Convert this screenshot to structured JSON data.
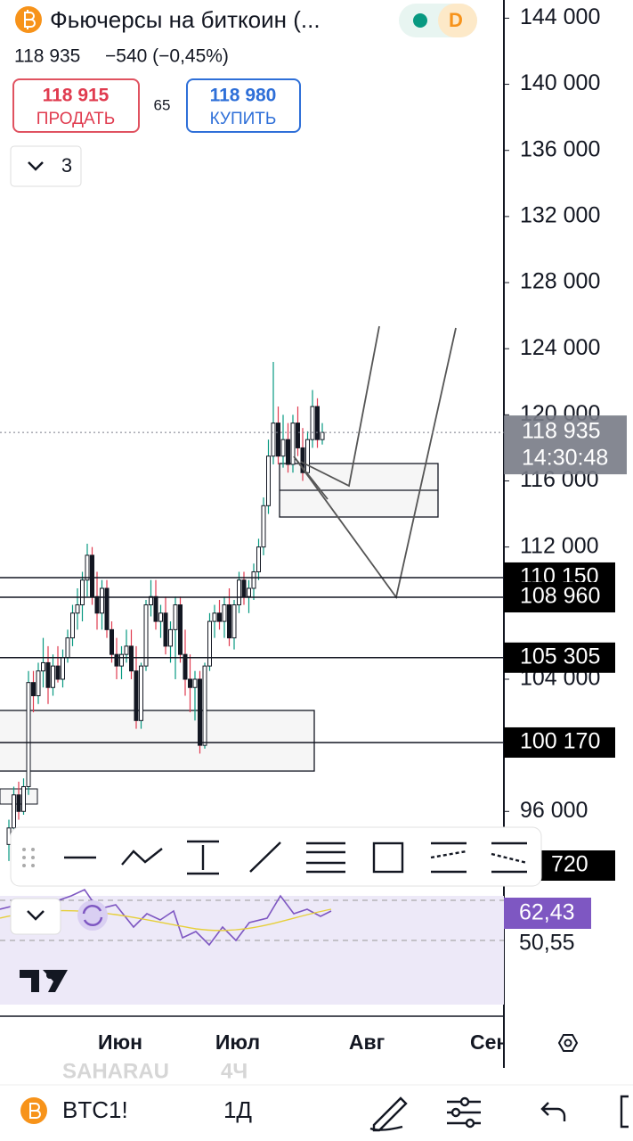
{
  "header": {
    "title": "Фьючерсы на биткоин (...",
    "price": "118 935",
    "change": "−540 (−0,45%)",
    "sell_price": "118 915",
    "sell_label": "ПРОДАТЬ",
    "spread": "65",
    "buy_price": "118 980",
    "buy_label": "КУПИТЬ",
    "badge": "D",
    "layers_count": "3"
  },
  "chart_data": {
    "type": "candlestick",
    "candles": [
      [
        94000,
        95500,
        93000,
        95000
      ],
      [
        95000,
        97500,
        94500,
        97000
      ],
      [
        97000,
        97800,
        95500,
        96000
      ],
      [
        96000,
        98000,
        95800,
        97500
      ],
      [
        97500,
        104500,
        97000,
        103800
      ],
      [
        103800,
        104500,
        102000,
        103000
      ],
      [
        103000,
        105000,
        102500,
        104500
      ],
      [
        104500,
        106500,
        103500,
        105000
      ],
      [
        105000,
        106000,
        102500,
        103500
      ],
      [
        103500,
        105500,
        103000,
        104800
      ],
      [
        104800,
        106000,
        103800,
        104000
      ],
      [
        104000,
        105800,
        103500,
        105300
      ],
      [
        105300,
        107000,
        105000,
        106500
      ],
      [
        106500,
        108500,
        106000,
        108000
      ],
      [
        108000,
        109500,
        107000,
        108500
      ],
      [
        108500,
        110500,
        107500,
        110000
      ],
      [
        110000,
        112200,
        109000,
        111500
      ],
      [
        111500,
        112000,
        108500,
        109000
      ],
      [
        109000,
        110500,
        107000,
        108000
      ],
      [
        108000,
        110000,
        107000,
        109500
      ],
      [
        109500,
        110000,
        106500,
        107000
      ],
      [
        107000,
        107500,
        105000,
        105500
      ],
      [
        105500,
        106500,
        104000,
        104800
      ],
      [
        104800,
        106000,
        104000,
        105500
      ],
      [
        105500,
        107000,
        105000,
        106000
      ],
      [
        106000,
        107000,
        104000,
        104500
      ],
      [
        104500,
        106000,
        101000,
        101500
      ],
      [
        101500,
        105000,
        101000,
        104800
      ],
      [
        104800,
        108800,
        104500,
        108500
      ],
      [
        108500,
        110000,
        107800,
        109000
      ],
      [
        109000,
        110000,
        107000,
        107500
      ],
      [
        107500,
        108500,
        106500,
        108000
      ],
      [
        108000,
        109000,
        105500,
        106000
      ],
      [
        106000,
        107500,
        105000,
        107000
      ],
      [
        107000,
        109000,
        104000,
        108500
      ],
      [
        108500,
        109000,
        105000,
        105500
      ],
      [
        105500,
        107000,
        103000,
        104000
      ],
      [
        104000,
        105500,
        102000,
        103500
      ],
      [
        103500,
        104500,
        101500,
        104000
      ],
      [
        104000,
        104500,
        99500,
        100000
      ],
      [
        100000,
        105000,
        99800,
        104800
      ],
      [
        104800,
        108000,
        104500,
        107500
      ],
      [
        107500,
        108500,
        106500,
        108000
      ],
      [
        108000,
        108800,
        107000,
        107500
      ],
      [
        107500,
        109000,
        106500,
        108500
      ],
      [
        108500,
        109500,
        106000,
        106500
      ],
      [
        106500,
        108800,
        105800,
        108500
      ],
      [
        108500,
        110500,
        108000,
        110000
      ],
      [
        110000,
        110500,
        108500,
        109000
      ],
      [
        109000,
        110000,
        108000,
        109500
      ],
      [
        109500,
        111000,
        108800,
        110500
      ],
      [
        110500,
        112500,
        110000,
        112000
      ],
      [
        112000,
        115000,
        111500,
        114500
      ],
      [
        114500,
        118500,
        114000,
        117500
      ],
      [
        117500,
        123200,
        117000,
        119500
      ],
      [
        119500,
        120500,
        117000,
        117500
      ],
      [
        117500,
        120000,
        116800,
        118500
      ],
      [
        118500,
        119500,
        116500,
        117000
      ],
      [
        117000,
        120000,
        116500,
        119500
      ],
      [
        119500,
        120500,
        117500,
        118000
      ],
      [
        118000,
        119200,
        116000,
        116500
      ],
      [
        116500,
        119000,
        116300,
        118500
      ],
      [
        118500,
        121500,
        118000,
        120500
      ],
      [
        120500,
        121000,
        118000,
        118500
      ],
      [
        118500,
        119500,
        118200,
        118935
      ]
    ],
    "ylim": [
      91700,
      145100
    ],
    "yticks": [
      {
        "value": 144000,
        "label": "144 000"
      },
      {
        "value": 140000,
        "label": "140 000"
      },
      {
        "value": 136000,
        "label": "136 000"
      },
      {
        "value": 132000,
        "label": "132 000"
      },
      {
        "value": 128000,
        "label": "128 000"
      },
      {
        "value": 124000,
        "label": "124 000"
      },
      {
        "value": 120000,
        "label": "120 000"
      },
      {
        "value": 116000,
        "label": "116 000"
      },
      {
        "value": 112000,
        "label": "112 000"
      },
      {
        "value": 104000,
        "label": "104 000"
      },
      {
        "value": 96000,
        "label": "96 000"
      }
    ],
    "levels": [
      {
        "value": 110150,
        "label": "110 150"
      },
      {
        "value": 108960,
        "label": "108 960"
      },
      {
        "value": 105305,
        "label": "105 305"
      },
      {
        "value": 100170,
        "label": "100 170"
      }
    ],
    "last_price": {
      "value": 118935,
      "label": "118 935"
    },
    "timer": "14:30:48",
    "partial_label": "720"
  },
  "indicator": {
    "value_label": "62,43",
    "level_label": "50,55"
  },
  "x_labels": [
    "Июн",
    "Июл",
    "Авг",
    "Сен"
  ],
  "ghost_text": [
    "SAHARAU",
    "4Ч"
  ],
  "bottom_bar": {
    "symbol": "BTC1!",
    "interval": "1Д"
  }
}
